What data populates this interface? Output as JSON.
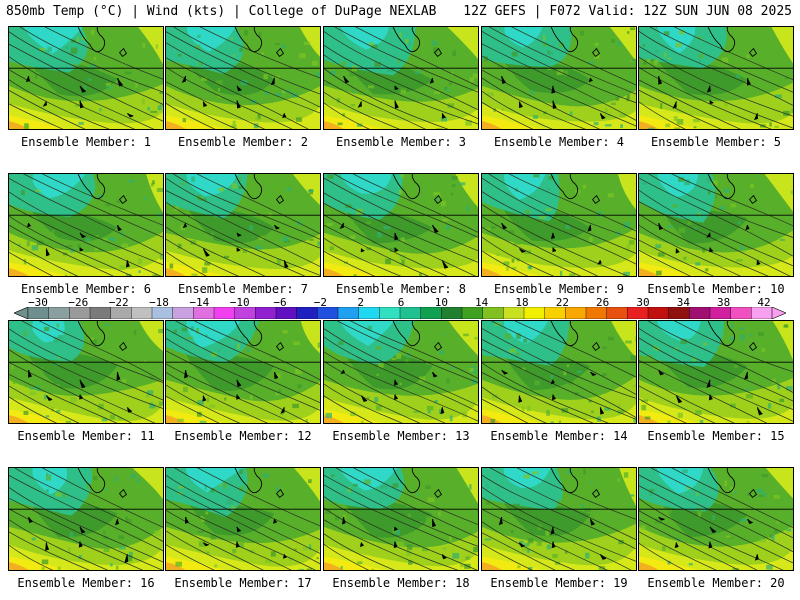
{
  "header": {
    "left_title": "850mb Temp (°C) | Wind (kts) | College of DuPage NEXLAB",
    "right_title": "12Z GEFS | F072 Valid: 12Z SUN JUN 08 2025"
  },
  "panels": [
    {
      "caption": "Ensemble Member: 1"
    },
    {
      "caption": "Ensemble Member: 2"
    },
    {
      "caption": "Ensemble Member: 3"
    },
    {
      "caption": "Ensemble Member: 4"
    },
    {
      "caption": "Ensemble Member: 5"
    },
    {
      "caption": "Ensemble Member: 6"
    },
    {
      "caption": "Ensemble Member: 7"
    },
    {
      "caption": "Ensemble Member: 8"
    },
    {
      "caption": "Ensemble Member: 9"
    },
    {
      "caption": "Ensemble Member: 10"
    },
    {
      "caption": "Ensemble Member: 11"
    },
    {
      "caption": "Ensemble Member: 12"
    },
    {
      "caption": "Ensemble Member: 13"
    },
    {
      "caption": "Ensemble Member: 14"
    },
    {
      "caption": "Ensemble Member: 15"
    },
    {
      "caption": "Ensemble Member: 16"
    },
    {
      "caption": "Ensemble Member: 17"
    },
    {
      "caption": "Ensemble Member: 18"
    },
    {
      "caption": "Ensemble Member: 19"
    },
    {
      "caption": "Ensemble Member: 20"
    }
  ],
  "colorbar": {
    "ticks": [
      "−30",
      "−26",
      "−22",
      "−18",
      "−14",
      "−10",
      "−6",
      "−2",
      "2",
      "6",
      "10",
      "14",
      "18",
      "22",
      "26",
      "30",
      "34",
      "38",
      "42"
    ],
    "colors": [
      "#6f8e8e",
      "#8aa0a0",
      "#9a9a9a",
      "#7b7b7b",
      "#a9a9a9",
      "#c0c0c0",
      "#a8bfe0",
      "#c9a0e0",
      "#e070e0",
      "#f040f0",
      "#c040e0",
      "#9020d0",
      "#6010c0",
      "#2020c0",
      "#2050e0",
      "#20a0f0",
      "#20d8f0",
      "#30e0c0",
      "#20c090",
      "#10a050",
      "#208030",
      "#40a020",
      "#80c020",
      "#c8e020",
      "#f0f000",
      "#f8d000",
      "#f8a800",
      "#f07800",
      "#e85010",
      "#e82020",
      "#c01010",
      "#901010",
      "#a01070",
      "#d020a0",
      "#f050c0",
      "#f8a0f0"
    ]
  }
}
